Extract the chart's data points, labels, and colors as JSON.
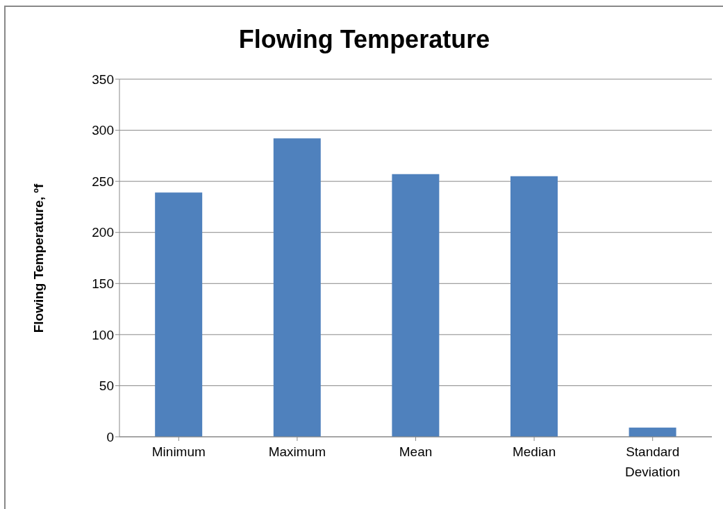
{
  "chart_data": {
    "type": "bar",
    "title": "Flowing Temperature",
    "ylabel": "Flowing Temperature, ºf",
    "categories": [
      "Minimum",
      "Maximum",
      "Mean",
      "Median",
      "Standard Deviation"
    ],
    "values": [
      239,
      292,
      257,
      255,
      9
    ],
    "color": "#4f81bd",
    "ylim": [
      0,
      350
    ],
    "yticks": [
      0,
      50,
      100,
      150,
      200,
      250,
      300,
      350
    ],
    "grid": "y"
  }
}
